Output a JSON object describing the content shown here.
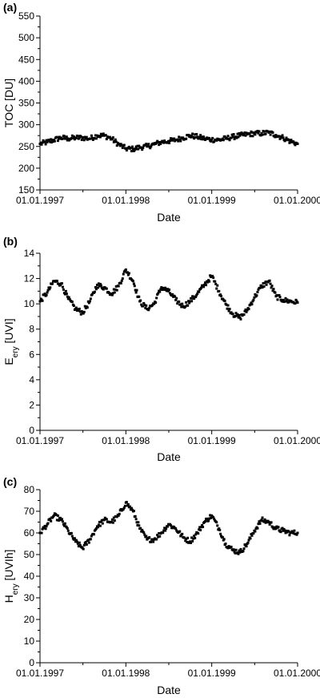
{
  "chart_data": [
    {
      "type": "scatter",
      "panel_label": "(a)",
      "xlabel": "Date",
      "ylabel": "TOC [DU]",
      "ylabel_sub": "",
      "ylabel_after": "",
      "ylim": [
        150,
        550
      ],
      "yticks": [
        150,
        200,
        250,
        300,
        350,
        400,
        450,
        500,
        550
      ],
      "xlim": [
        "1997-01-01",
        "2000-01-01"
      ],
      "xticks": [
        {
          "label": "01.01.1997",
          "date": "1997-01-01"
        },
        {
          "label": "01.01.1998",
          "date": "1998-01-01"
        },
        {
          "label": "01.01.1999",
          "date": "1999-01-01"
        },
        {
          "label": "01.01.2000",
          "date": "2000-01-01"
        }
      ],
      "grid": false,
      "series": [
        {
          "x": [
            "1997-01-01",
            "1997-02-01",
            "1997-03-01",
            "1997-04-01",
            "1997-05-01",
            "1997-06-01",
            "1997-07-01",
            "1997-08-01",
            "1997-09-01",
            "1997-10-01",
            "1997-11-01",
            "1997-12-01",
            "1998-01-01",
            "1998-02-01",
            "1998-03-01",
            "1998-04-01",
            "1998-05-01",
            "1998-06-01",
            "1998-07-01",
            "1998-08-01",
            "1998-09-01",
            "1998-10-01",
            "1998-11-01",
            "1998-12-01",
            "1999-01-01",
            "1999-02-01",
            "1999-03-01",
            "1999-04-01",
            "1999-05-01",
            "1999-06-01",
            "1999-07-01",
            "1999-08-01",
            "1999-09-01",
            "1999-10-01",
            "1999-11-01",
            "1999-12-01",
            "2000-01-01"
          ],
          "y": [
            256,
            260,
            265,
            270,
            268,
            270,
            270,
            268,
            275,
            275,
            268,
            255,
            245,
            244,
            248,
            250,
            255,
            260,
            262,
            265,
            270,
            275,
            272,
            268,
            266,
            265,
            268,
            272,
            275,
            278,
            280,
            280,
            282,
            276,
            270,
            262,
            256
          ]
        }
      ]
    },
    {
      "type": "scatter",
      "panel_label": "(b)",
      "xlabel": "Date",
      "ylabel": "E",
      "ylabel_sub": "ery",
      "ylabel_after": " [UVI]",
      "ylim": [
        0,
        14
      ],
      "yticks": [
        0,
        2,
        4,
        6,
        8,
        10,
        12,
        14
      ],
      "xlim": [
        "1997-01-01",
        "2000-01-01"
      ],
      "xticks": [
        {
          "label": "01.01.1997",
          "date": "1997-01-01"
        },
        {
          "label": "01.01.1998",
          "date": "1998-01-01"
        },
        {
          "label": "01.01.1999",
          "date": "1999-01-01"
        },
        {
          "label": "01.01.2000",
          "date": "2000-01-01"
        }
      ],
      "grid": false,
      "series": [
        {
          "x": [
            "1997-01-01",
            "1997-02-01",
            "1997-03-01",
            "1997-04-01",
            "1997-05-01",
            "1997-06-01",
            "1997-07-01",
            "1997-08-01",
            "1997-09-01",
            "1997-10-01",
            "1997-11-01",
            "1997-12-01",
            "1998-01-01",
            "1998-02-01",
            "1998-03-01",
            "1998-04-01",
            "1998-05-01",
            "1998-06-01",
            "1998-07-01",
            "1998-08-01",
            "1998-09-01",
            "1998-10-01",
            "1998-11-01",
            "1998-12-01",
            "1999-01-01",
            "1999-02-01",
            "1999-03-01",
            "1999-04-01",
            "1999-05-01",
            "1999-06-01",
            "1999-07-01",
            "1999-08-01",
            "1999-09-01",
            "1999-10-01",
            "1999-11-01",
            "1999-12-01",
            "2000-01-01"
          ],
          "y": [
            10.2,
            10.9,
            11.8,
            11.6,
            10.4,
            9.6,
            9.3,
            10.2,
            11.5,
            11.3,
            10.8,
            11.4,
            12.7,
            11.8,
            10.2,
            9.6,
            10.0,
            11.3,
            11.0,
            10.3,
            9.8,
            10.2,
            10.8,
            11.5,
            12.2,
            11.0,
            10.0,
            9.2,
            8.9,
            9.5,
            10.5,
            11.4,
            11.8,
            10.6,
            10.3,
            10.2,
            10.1
          ]
        }
      ]
    },
    {
      "type": "scatter",
      "panel_label": "(c)",
      "xlabel": "Date",
      "ylabel": "H",
      "ylabel_sub": "ery",
      "ylabel_after": " [UVIh]",
      "ylim": [
        0,
        80
      ],
      "yticks": [
        0,
        10,
        20,
        30,
        40,
        50,
        60,
        70,
        80
      ],
      "xlim": [
        "1997-01-01",
        "2000-01-01"
      ],
      "xticks": [
        {
          "label": "01.01.1997",
          "date": "1997-01-01"
        },
        {
          "label": "01.01.1998",
          "date": "1998-01-01"
        },
        {
          "label": "01.01.1999",
          "date": "1999-01-01"
        },
        {
          "label": "01.01.2000",
          "date": "2000-01-01"
        }
      ],
      "grid": false,
      "series": [
        {
          "x": [
            "1997-01-01",
            "1997-02-01",
            "1997-03-01",
            "1997-04-01",
            "1997-05-01",
            "1997-06-01",
            "1997-07-01",
            "1997-08-01",
            "1997-09-01",
            "1997-10-01",
            "1997-11-01",
            "1997-12-01",
            "1998-01-01",
            "1998-02-01",
            "1998-03-01",
            "1998-04-01",
            "1998-05-01",
            "1998-06-01",
            "1998-07-01",
            "1998-08-01",
            "1998-09-01",
            "1998-10-01",
            "1998-11-01",
            "1998-12-01",
            "1999-01-01",
            "1999-02-01",
            "1999-03-01",
            "1999-04-01",
            "1999-05-01",
            "1999-06-01",
            "1999-07-01",
            "1999-08-01",
            "1999-09-01",
            "1999-10-01",
            "1999-11-01",
            "1999-12-01",
            "2000-01-01"
          ],
          "y": [
            60,
            64,
            68,
            66,
            61,
            56,
            53,
            57,
            63,
            66,
            65,
            68,
            74,
            70,
            62,
            57,
            57,
            60,
            64,
            62,
            58,
            56,
            60,
            65,
            68,
            62,
            55,
            52,
            51,
            55,
            61,
            66,
            65,
            62,
            61,
            60,
            60
          ]
        }
      ]
    }
  ]
}
